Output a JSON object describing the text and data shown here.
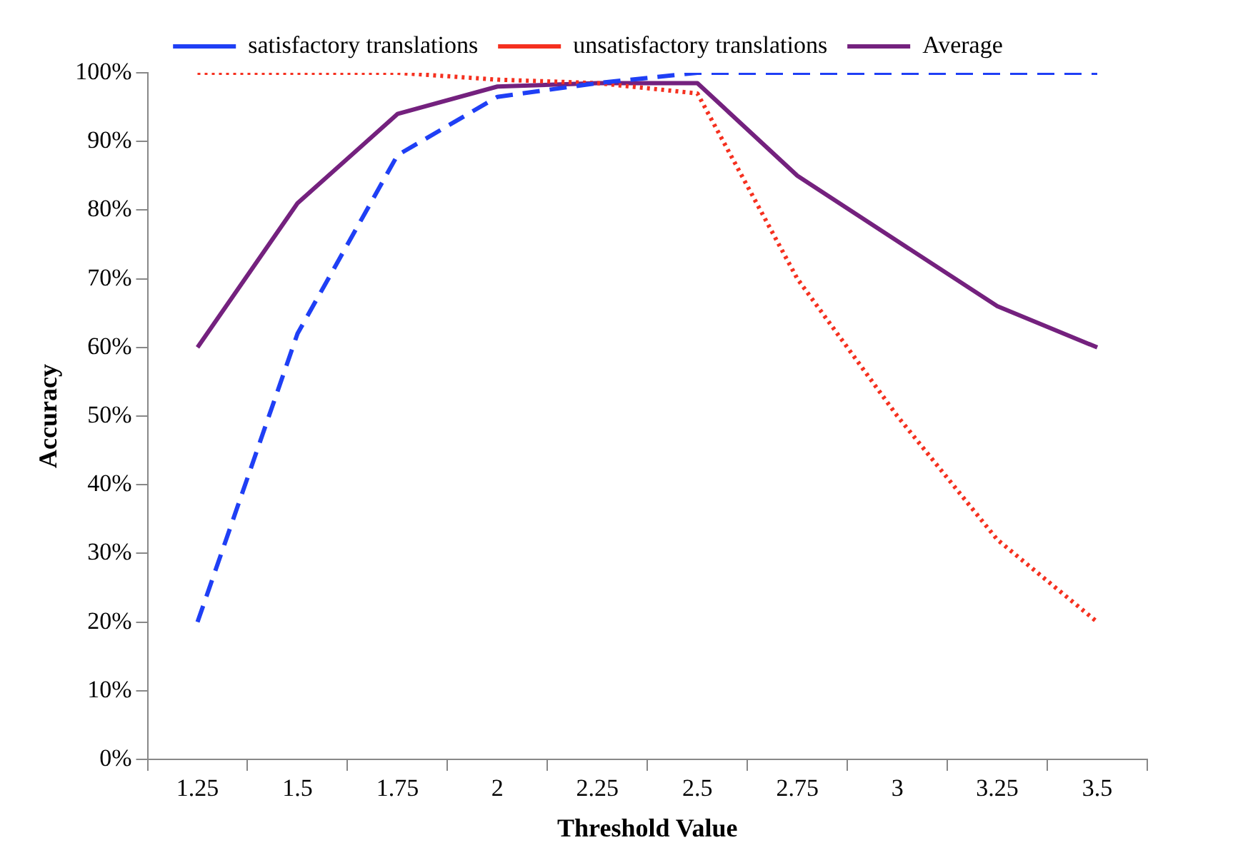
{
  "chart_data": {
    "type": "line",
    "xlabel": "Threshold Value",
    "ylabel": "Accuracy",
    "categories": [
      "1.25",
      "1.5",
      "1.75",
      "2",
      "2.25",
      "2.5",
      "2.75",
      "3",
      "3.25",
      "3.5"
    ],
    "series": [
      {
        "name": "satisfactory translations",
        "color": "#1f3ff5",
        "line_style": "dashed",
        "values": [
          20,
          62,
          88,
          96.5,
          98.5,
          100,
          100,
          100,
          100,
          100
        ]
      },
      {
        "name": "unsatisfactory translations",
        "color": "#f5301f",
        "line_style": "dotted",
        "values": [
          100,
          100,
          100,
          99,
          98.5,
          97,
          70,
          50,
          32,
          20
        ]
      },
      {
        "name": "Average",
        "color": "#74217e",
        "line_style": "solid",
        "values": [
          60,
          81,
          94,
          98,
          98.5,
          98.5,
          85,
          75.5,
          66,
          60
        ]
      }
    ],
    "ylim": [
      0,
      100
    ],
    "yticks": [
      {
        "value": 0,
        "label": "0%"
      },
      {
        "value": 10,
        "label": "10%"
      },
      {
        "value": 20,
        "label": "20%"
      },
      {
        "value": 30,
        "label": "30%"
      },
      {
        "value": 40,
        "label": "40%"
      },
      {
        "value": 50,
        "label": "50%"
      },
      {
        "value": 60,
        "label": "60%"
      },
      {
        "value": 70,
        "label": "70%"
      },
      {
        "value": 80,
        "label": "80%"
      },
      {
        "value": 90,
        "label": "90%"
      },
      {
        "value": 100,
        "label": "100%"
      }
    ],
    "grid": false,
    "legend": "top",
    "marker": "none"
  }
}
